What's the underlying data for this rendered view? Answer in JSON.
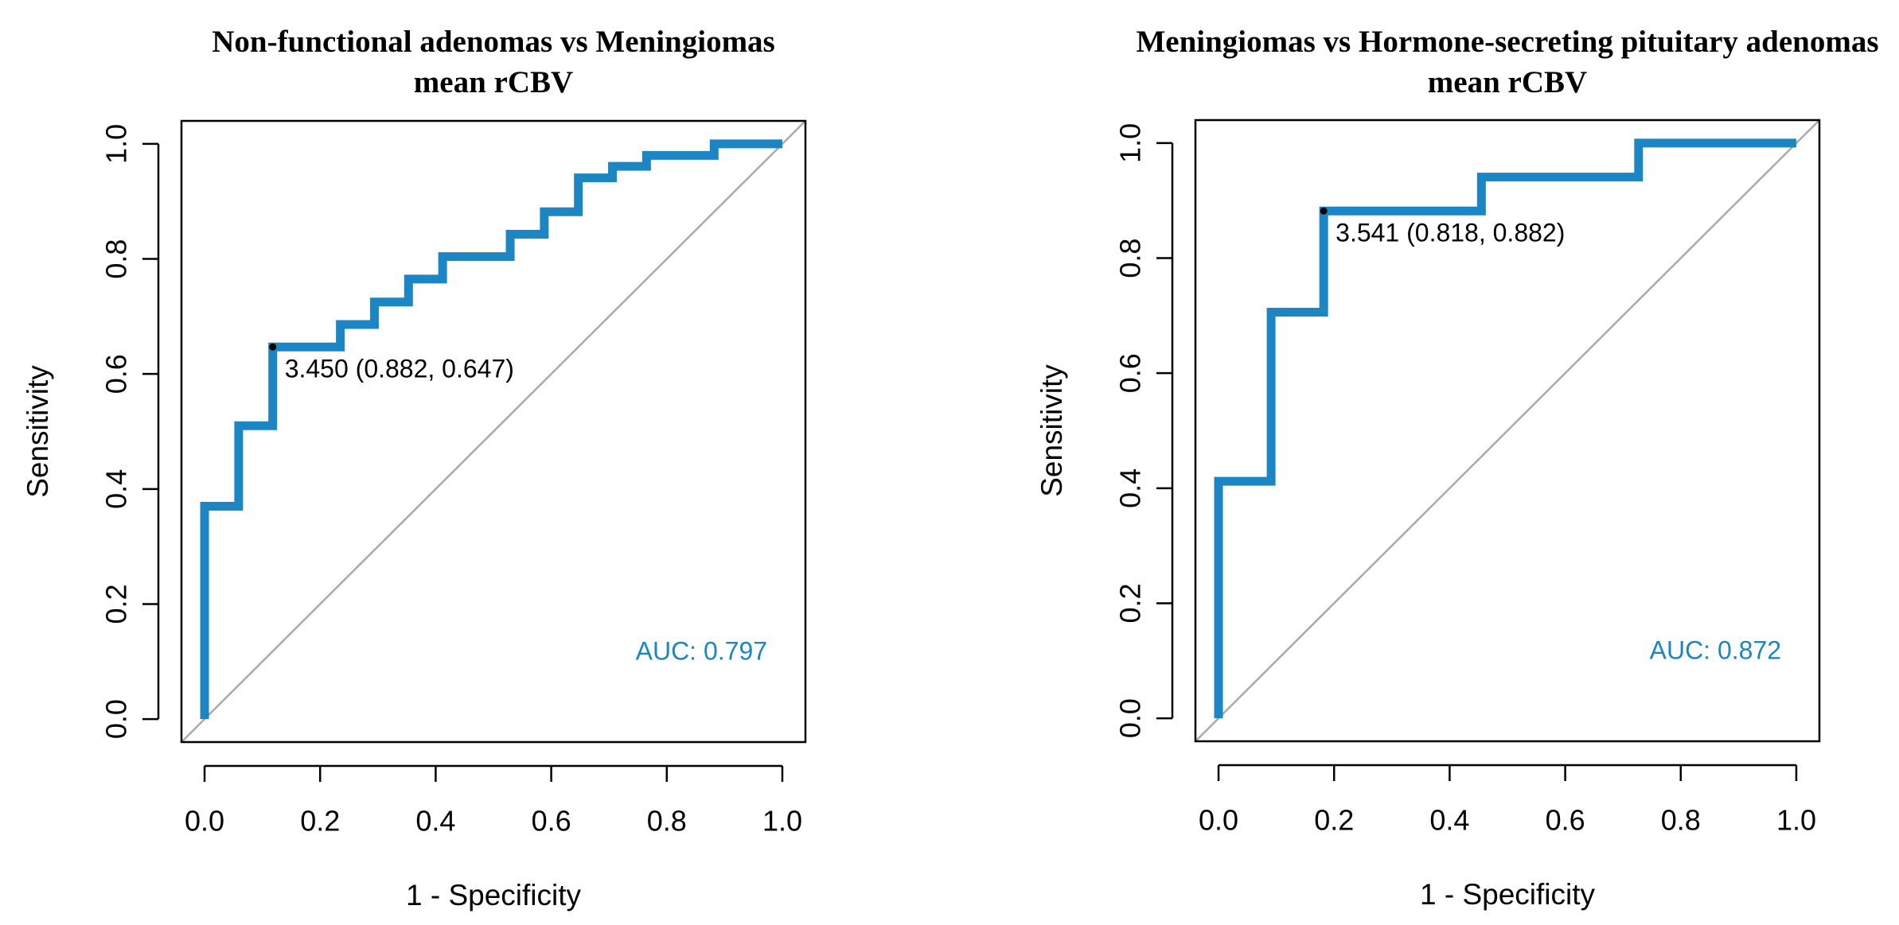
{
  "chart_data": [
    {
      "type": "line",
      "title": "Non-functional adenomas vs Meningiomas",
      "subtitle": "mean rCBV",
      "x_label": "1 - Specificity",
      "y_label": "Sensitivity",
      "color": "#1b86c3",
      "x": [
        0,
        0,
        0.059,
        0.059,
        0.118,
        0.118,
        0.235,
        0.235,
        0.294,
        0.294,
        0.353,
        0.353,
        0.412,
        0.412,
        0.529,
        0.529,
        0.588,
        0.588,
        0.647,
        0.647,
        0.706,
        0.706,
        0.765,
        0.765,
        0.882,
        0.882,
        1
      ],
      "values": [
        0,
        0.37,
        0.37,
        0.51,
        0.51,
        0.647,
        0.647,
        0.686,
        0.686,
        0.725,
        0.725,
        0.765,
        0.765,
        0.804,
        0.804,
        0.843,
        0.843,
        0.882,
        0.882,
        0.941,
        0.941,
        0.961,
        0.961,
        0.98,
        0.98,
        1,
        1
      ],
      "annotations": [
        {
          "text": "3.450 (0.882, 0.647)",
          "x": 0.118,
          "y": 0.647
        }
      ],
      "auc_label": "AUC: 0.797",
      "xlim": [
        -0.04,
        1.04
      ],
      "ylim": [
        -0.04,
        1.04
      ],
      "xticks": [
        {
          "value": 0,
          "label": "0.0"
        },
        0.2,
        0.4,
        0.6,
        0.8,
        {
          "value": 1,
          "label": "1.0"
        }
      ],
      "yticks": [
        {
          "value": 0,
          "label": "0.0"
        },
        0.2,
        0.4,
        0.6,
        0.8,
        {
          "value": 1,
          "label": "1.0"
        }
      ]
    },
    {
      "type": "line",
      "title": "Meningiomas vs Hormone-secreting pituitary adenomas",
      "subtitle": "mean rCBV",
      "x_label": "1 - Specificity",
      "y_label": "Sensitivity",
      "color": "#1b86c3",
      "x": [
        0,
        0,
        0.091,
        0.091,
        0.182,
        0.182,
        0.455,
        0.455,
        0.727,
        0.727,
        1
      ],
      "values": [
        0,
        0.412,
        0.412,
        0.706,
        0.706,
        0.882,
        0.882,
        0.941,
        0.941,
        1,
        1
      ],
      "annotations": [
        {
          "text": "3.541 (0.818, 0.882)",
          "x": 0.182,
          "y": 0.882
        }
      ],
      "auc_label": "AUC: 0.872",
      "xlim": [
        -0.04,
        1.04
      ],
      "ylim": [
        -0.04,
        1.04
      ],
      "xticks": [
        {
          "value": 0,
          "label": "0.0"
        },
        0.2,
        0.4,
        0.6,
        0.8,
        {
          "value": 1,
          "label": "1.0"
        }
      ],
      "yticks": [
        {
          "value": 0,
          "label": "0.0"
        },
        0.2,
        0.4,
        0.6,
        0.8,
        {
          "value": 1,
          "label": "1.0"
        }
      ]
    }
  ]
}
